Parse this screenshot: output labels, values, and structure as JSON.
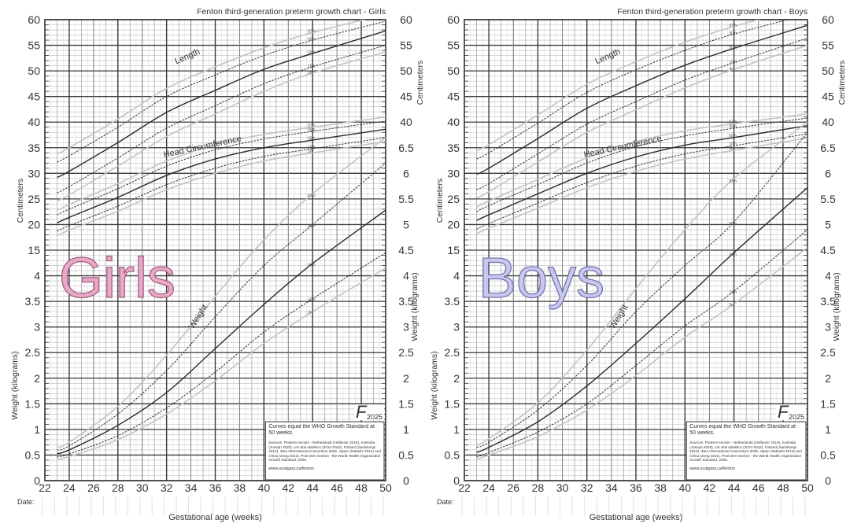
{
  "chart_data": [
    {
      "type": "line",
      "title": "Fenton third-generation preterm growth chart - Girls",
      "watermark": "Girls",
      "watermark_fill": "#e8a8c6",
      "watermark_stroke": "#9c5a7c",
      "xlabel": "Gestational age (weeks)",
      "ylabel_cm": "Centimeters",
      "ylabel_kg": "Weight (kilograms)",
      "date_label": "Date:",
      "xlim": [
        22,
        50
      ],
      "x_ticks": [
        22,
        24,
        26,
        28,
        30,
        32,
        34,
        36,
        38,
        40,
        42,
        44,
        46,
        48,
        50
      ],
      "left_ticks_cm": [
        60,
        55,
        50,
        45,
        40,
        35,
        30,
        25,
        20,
        15
      ],
      "left_ticks_kg": [
        4,
        3.5,
        3,
        2.5,
        2,
        1.5,
        1,
        0.5,
        0
      ],
      "right_ticks_cm": [
        60,
        55,
        50,
        45,
        40
      ],
      "right_ticks_kg": [
        6.5,
        6,
        5.5,
        5,
        4.5,
        4,
        3.5,
        3,
        2.5,
        2,
        1.5,
        1,
        0.5,
        0
      ],
      "grid": true,
      "percentile_labels": [
        "97th",
        "90th",
        "50th",
        "10th",
        "3rd"
      ],
      "x": [
        23,
        24,
        28,
        32,
        36,
        40,
        44,
        50
      ],
      "groups": [
        {
          "name": "Length",
          "unit": "cm",
          "series": [
            {
              "percentile": "97th",
              "values": [
                33.8,
                35.0,
                40.6,
                46.6,
                50.8,
                54.5,
                57.5,
                61.0
              ]
            },
            {
              "percentile": "90th",
              "values": [
                32.2,
                33.4,
                39.0,
                45.0,
                49.2,
                53.0,
                56.0,
                59.7
              ]
            },
            {
              "percentile": "50th",
              "values": [
                29.2,
                30.4,
                36.0,
                41.9,
                46.2,
                50.3,
                53.4,
                57.8
              ]
            },
            {
              "percentile": "10th",
              "values": [
                26.2,
                27.4,
                33.0,
                38.8,
                43.2,
                47.5,
                50.8,
                55.0
              ]
            },
            {
              "percentile": "3rd",
              "values": [
                24.6,
                25.8,
                31.4,
                37.2,
                41.6,
                46.0,
                49.6,
                53.7
              ]
            }
          ]
        },
        {
          "name": "Head Circumference",
          "unit": "cm",
          "series": [
            {
              "percentile": "97th",
              "values": [
                22.8,
                23.9,
                28.0,
                32.4,
                35.6,
                37.6,
                39.0,
                41.0
              ]
            },
            {
              "percentile": "90th",
              "values": [
                21.9,
                23.0,
                27.0,
                31.4,
                34.6,
                36.7,
                38.2,
                40.2
              ]
            },
            {
              "percentile": "50th",
              "values": [
                20.3,
                21.4,
                25.3,
                29.6,
                32.8,
                35.0,
                36.5,
                38.6
              ]
            },
            {
              "percentile": "10th",
              "values": [
                18.7,
                19.8,
                23.6,
                27.8,
                31.0,
                33.3,
                34.8,
                37.0
              ]
            },
            {
              "percentile": "3rd",
              "values": [
                17.8,
                18.9,
                22.6,
                26.8,
                30.0,
                32.4,
                34.0,
                36.2
              ]
            }
          ]
        },
        {
          "name": "Weight",
          "unit": "kg",
          "series": [
            {
              "percentile": "97th",
              "values": [
                0.65,
                0.75,
                1.45,
                2.45,
                3.6,
                4.7,
                5.6,
                6.7
              ]
            },
            {
              "percentile": "90th",
              "values": [
                0.6,
                0.68,
                1.3,
                2.15,
                3.2,
                4.2,
                5.0,
                6.2
              ]
            },
            {
              "percentile": "50th",
              "values": [
                0.53,
                0.6,
                1.08,
                1.72,
                2.58,
                3.44,
                4.24,
                5.28
              ]
            },
            {
              "percentile": "10th",
              "values": [
                0.46,
                0.52,
                0.88,
                1.42,
                2.12,
                2.9,
                3.55,
                4.45
              ]
            },
            {
              "percentile": "3rd",
              "values": [
                0.42,
                0.47,
                0.8,
                1.3,
                1.95,
                2.68,
                3.3,
                4.15
              ]
            }
          ]
        }
      ],
      "info_box": {
        "headline": "Curves equal the WHO Growth Standard at 50 weeks.",
        "sources": "Sources: Preterm section - Netherlands (Hoftiezer 2019), Australia (Joseph 2020), US vital statistics (2014-2022), Finland (Sankilampi 2013), iNeo International Consortium 2025, Japan (Itabashi 2014) and China (Zong 2021). Post term section - the World Health Organization Growth Standard, 2006.",
        "url": "www.ucalgary.ca/fenton"
      },
      "logo": "F 2025"
    },
    {
      "type": "line",
      "title": "Fenton third-generation preterm growth chart - Boys",
      "watermark": "Boys",
      "watermark_fill": "#c8c8ee",
      "watermark_stroke": "#6e6ea8",
      "xlabel": "Gestational age (weeks)",
      "ylabel_cm": "Centimeters",
      "ylabel_kg": "Weight (kilograms)",
      "date_label": "Date:",
      "xlim": [
        22,
        50
      ],
      "x_ticks": [
        22,
        24,
        26,
        28,
        30,
        32,
        34,
        36,
        38,
        40,
        42,
        44,
        46,
        48,
        50
      ],
      "left_ticks_cm": [
        60,
        55,
        50,
        45,
        40,
        35,
        30,
        25,
        20,
        15
      ],
      "left_ticks_kg": [
        4,
        3.5,
        3,
        2.5,
        2,
        1.5,
        1,
        0.5,
        0
      ],
      "right_ticks_cm": [
        60,
        55,
        50,
        45,
        40
      ],
      "right_ticks_kg": [
        6.5,
        6,
        5.5,
        5,
        4.5,
        4,
        3.5,
        3,
        2.5,
        2,
        1.5,
        1,
        0.5,
        0
      ],
      "grid": true,
      "percentile_labels": [
        "97th",
        "90th",
        "50th",
        "10th",
        "3rd"
      ],
      "x": [
        23,
        24,
        28,
        32,
        36,
        40,
        44,
        50
      ],
      "groups": [
        {
          "name": "Length",
          "unit": "cm",
          "series": [
            {
              "percentile": "97th",
              "values": [
                34.4,
                35.6,
                41.4,
                47.4,
                51.8,
                55.6,
                58.7,
                62.5
              ]
            },
            {
              "percentile": "90th",
              "values": [
                32.8,
                34.0,
                39.8,
                45.8,
                50.2,
                54.0,
                57.2,
                61.0
              ]
            },
            {
              "percentile": "50th",
              "values": [
                29.8,
                31.0,
                36.8,
                42.7,
                47.1,
                51.1,
                54.4,
                58.9
              ]
            },
            {
              "percentile": "10th",
              "values": [
                26.8,
                28.0,
                33.8,
                39.6,
                44.0,
                48.2,
                51.6,
                56.4
              ]
            },
            {
              "percentile": "3rd",
              "values": [
                25.2,
                26.4,
                32.2,
                38.0,
                42.4,
                46.7,
                50.3,
                55.0
              ]
            }
          ]
        },
        {
          "name": "Head Circumference",
          "unit": "cm",
          "series": [
            {
              "percentile": "97th",
              "values": [
                23.4,
                24.6,
                28.8,
                33.0,
                36.2,
                38.3,
                39.7,
                41.6
              ]
            },
            {
              "percentile": "90th",
              "values": [
                22.5,
                23.7,
                27.8,
                32.0,
                35.2,
                37.3,
                38.8,
                40.8
              ]
            },
            {
              "percentile": "50th",
              "values": [
                20.8,
                21.9,
                26.0,
                30.0,
                33.2,
                35.5,
                37.0,
                39.3
              ]
            },
            {
              "percentile": "10th",
              "values": [
                19.1,
                20.2,
                24.2,
                28.2,
                31.4,
                33.8,
                35.4,
                37.7
              ]
            },
            {
              "percentile": "3rd",
              "values": [
                18.2,
                19.3,
                23.2,
                27.2,
                30.4,
                32.8,
                34.5,
                36.9
              ]
            }
          ]
        },
        {
          "name": "Weight",
          "unit": "kg",
          "series": [
            {
              "percentile": "97th",
              "values": [
                0.7,
                0.82,
                1.52,
                2.55,
                3.75,
                4.9,
                5.9,
                7.0
              ]
            },
            {
              "percentile": "90th",
              "values": [
                0.65,
                0.75,
                1.38,
                2.25,
                3.3,
                4.2,
                5.05,
                6.8
              ]
            },
            {
              "percentile": "50th",
              "values": [
                0.55,
                0.65,
                1.15,
                1.85,
                2.68,
                3.55,
                4.45,
                5.72
              ]
            },
            {
              "percentile": "10th",
              "values": [
                0.46,
                0.55,
                0.95,
                1.5,
                2.25,
                3.02,
                3.7,
                4.9
              ]
            },
            {
              "percentile": "3rd",
              "values": [
                0.42,
                0.5,
                0.86,
                1.38,
                2.05,
                2.8,
                3.45,
                4.55
              ]
            }
          ]
        }
      ],
      "info_box": {
        "headline": "Curves equal the WHO Growth Standard at 50 weeks.",
        "sources": "Sources: Preterm section - Netherlands (Hoftiezer 2019), Australia (Joseph 2020), US vital statistics (2014-2022), Finland (Sankilampi 2013), iNeo International Consortium 2025, Japan (Itabashi 2014) and China (Zong 2021). Post term section - the World Health Organization Growth Standard, 2006.",
        "url": "www.ucalgary.ca/fenton"
      },
      "logo": "F 2025"
    }
  ]
}
